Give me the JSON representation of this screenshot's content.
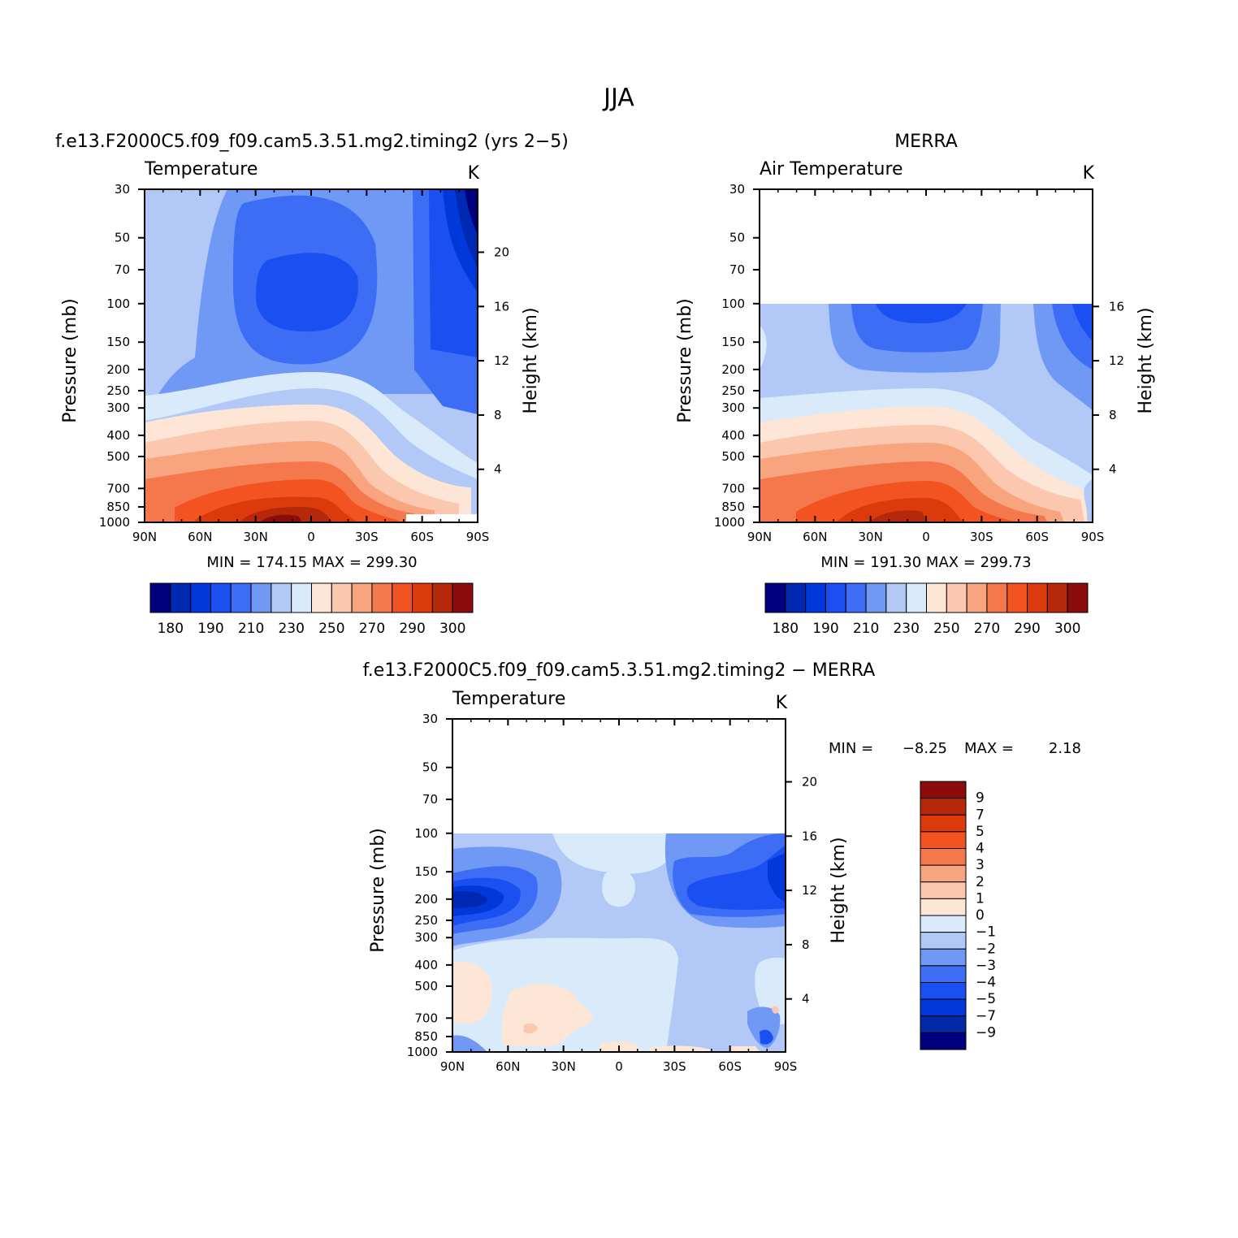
{
  "figure": {
    "title": "JJA"
  },
  "colors": {
    "fill_palette": [
      "#00007f",
      "#0029b3",
      "#0039d9",
      "#1a4ff2",
      "#3d6df5",
      "#7098f5",
      "#b2c9f7",
      "#d9eafa",
      "#fde6d6",
      "#fbc8af",
      "#f8a57f",
      "#f5784c",
      "#f25320",
      "#dd3a0c",
      "#b52809",
      "#8c0c0c"
    ],
    "diff_palette": [
      "#00007f",
      "#002aa8",
      "#0039d9",
      "#1a4ff2",
      "#3d6df5",
      "#7098f5",
      "#b2c9f7",
      "#d9eafa",
      "#fde6d6",
      "#fbc8af",
      "#f8a57f",
      "#f5784c",
      "#f25320",
      "#dd3a0c",
      "#b52809",
      "#8c0c0c"
    ]
  },
  "chart_data": [
    {
      "type": "heatmap",
      "id": "model",
      "suptitle": "f.e13.F2000C5.f09_f09.cam5.3.51.mg2.timing2 (yrs 2−5)",
      "left_title": "Temperature",
      "right_title": "K",
      "xlabel": "",
      "ylabel": "Pressure (mb)",
      "ylabel_right": "Height (km)",
      "x_ticks": [
        "90N",
        "60N",
        "30N",
        "0",
        "30S",
        "60S",
        "90S"
      ],
      "latitude_range": [
        90,
        -90
      ],
      "y_ticks": [
        "30",
        "50",
        "70",
        "100",
        "150",
        "200",
        "250",
        "300",
        "400",
        "500",
        "700",
        "850",
        "1000"
      ],
      "pressure_range_mb": [
        30,
        1000
      ],
      "height_ticks_km": [
        "20",
        "16",
        "12",
        "8",
        "4"
      ],
      "stats": {
        "min_label": "MIN =",
        "min": "174.15",
        "max_label": "MAX =",
        "max": "299.30"
      },
      "colorbar": {
        "labels": [
          "180",
          "190",
          "210",
          "230",
          "250",
          "270",
          "290",
          "300"
        ],
        "levels": [
          180,
          185,
          190,
          200,
          210,
          220,
          230,
          240,
          250,
          260,
          270,
          280,
          290,
          295,
          300
        ]
      }
    },
    {
      "type": "heatmap",
      "id": "obs",
      "suptitle": "MERRA",
      "left_title": "Air Temperature",
      "right_title": "K",
      "xlabel": "",
      "ylabel": "Pressure (mb)",
      "ylabel_right": "Height (km)",
      "x_ticks": [
        "90N",
        "60N",
        "30N",
        "0",
        "30S",
        "60S",
        "90S"
      ],
      "latitude_range": [
        90,
        -90
      ],
      "y_ticks": [
        "30",
        "50",
        "70",
        "100",
        "150",
        "200",
        "250",
        "300",
        "400",
        "500",
        "700",
        "850",
        "1000"
      ],
      "pressure_range_mb": [
        30,
        1000
      ],
      "data_top_mb": 100,
      "height_ticks_km": [
        "16",
        "12",
        "8",
        "4"
      ],
      "stats": {
        "min_label": "MIN =",
        "min": "191.30",
        "max_label": "MAX =",
        "max": "299.73"
      },
      "colorbar": {
        "labels": [
          "180",
          "190",
          "210",
          "230",
          "250",
          "270",
          "290",
          "300"
        ],
        "levels": [
          180,
          185,
          190,
          200,
          210,
          220,
          230,
          240,
          250,
          260,
          270,
          280,
          290,
          295,
          300
        ]
      }
    },
    {
      "type": "heatmap",
      "id": "diff",
      "suptitle": "f.e13.F2000C5.f09_f09.cam5.3.51.mg2.timing2 − MERRA",
      "left_title": "Temperature",
      "right_title": "K",
      "xlabel": "",
      "ylabel": "Pressure (mb)",
      "ylabel_right": "Height (km)",
      "x_ticks": [
        "90N",
        "60N",
        "30N",
        "0",
        "30S",
        "60S",
        "90S"
      ],
      "latitude_range": [
        90,
        -90
      ],
      "y_ticks": [
        "30",
        "50",
        "70",
        "100",
        "150",
        "200",
        "250",
        "300",
        "400",
        "500",
        "700",
        "850",
        "1000"
      ],
      "pressure_range_mb": [
        30,
        1000
      ],
      "data_top_mb": 100,
      "height_ticks_km": [
        "20",
        "16",
        "12",
        "8",
        "4"
      ],
      "stats": {
        "min_label": "MIN =",
        "min": "−8.25",
        "max_label": "MAX =",
        "max": "2.18"
      },
      "colorbar": {
        "labels": [
          "9",
          "7",
          "5",
          "4",
          "3",
          "2",
          "1",
          "0",
          "−1",
          "−2",
          "−3",
          "−4",
          "−5",
          "−7",
          "−9"
        ],
        "levels": [
          -9,
          -7,
          -5,
          -4,
          -3,
          -2,
          -1,
          0,
          1,
          2,
          3,
          4,
          5,
          7,
          9
        ]
      }
    }
  ]
}
